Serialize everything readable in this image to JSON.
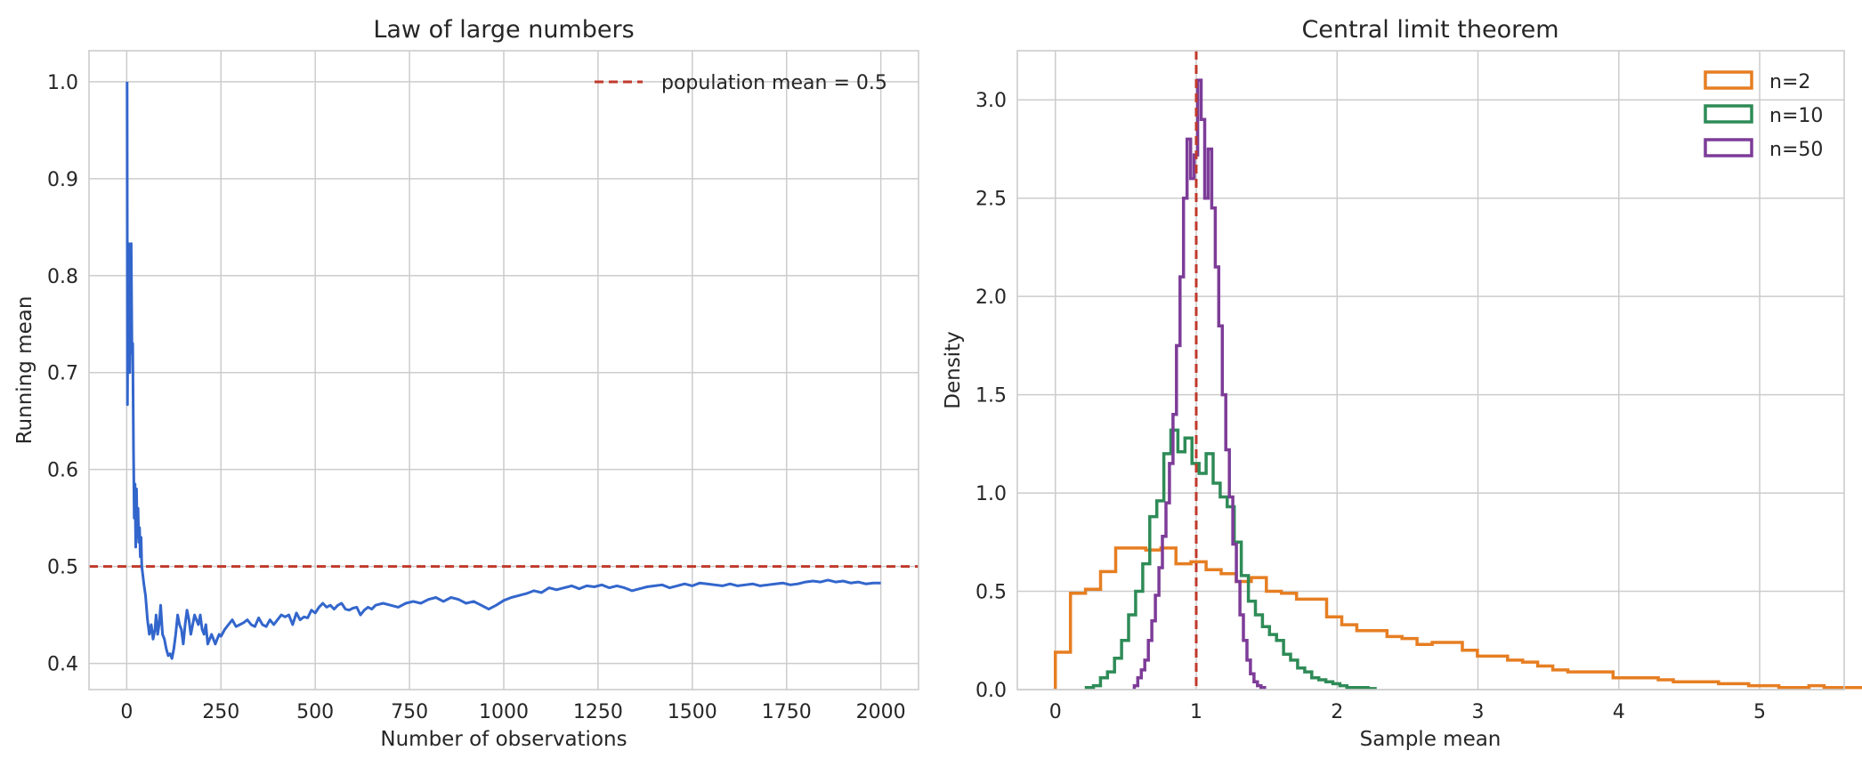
{
  "chart_data": [
    {
      "type": "line",
      "title": "Law of large numbers",
      "xlabel": "Number of observations",
      "ylabel": "Running mean",
      "xlim": [
        -100,
        2100
      ],
      "ylim": [
        0.373,
        1.032
      ],
      "xticks": [
        0,
        250,
        500,
        750,
        1000,
        1250,
        1500,
        1750,
        2000
      ],
      "yticks": [
        0.4,
        0.5,
        0.6,
        0.7,
        0.8,
        0.9,
        1.0
      ],
      "grid": true,
      "legend_position": "top-right",
      "series": [
        {
          "name": "",
          "color": "#3366cc",
          "x": [
            1,
            2,
            3,
            4,
            5,
            6,
            8,
            10,
            12,
            14,
            16,
            18,
            20,
            22,
            24,
            26,
            28,
            30,
            32,
            34,
            36,
            38,
            40,
            43,
            46,
            50,
            55,
            60,
            65,
            70,
            75,
            78,
            82,
            86,
            90,
            95,
            100,
            105,
            110,
            115,
            120,
            125,
            130,
            135,
            140,
            145,
            150,
            155,
            160,
            165,
            170,
            175,
            180,
            185,
            190,
            195,
            200,
            205,
            210,
            215,
            220,
            225,
            230,
            235,
            240,
            245,
            250,
            260,
            270,
            280,
            290,
            300,
            310,
            320,
            330,
            340,
            350,
            360,
            370,
            380,
            390,
            400,
            410,
            420,
            430,
            440,
            450,
            460,
            470,
            480,
            490,
            500,
            510,
            520,
            530,
            540,
            550,
            560,
            570,
            580,
            590,
            600,
            610,
            620,
            630,
            640,
            650,
            660,
            680,
            700,
            720,
            740,
            760,
            780,
            800,
            820,
            840,
            860,
            880,
            900,
            920,
            940,
            960,
            980,
            1000,
            1020,
            1040,
            1060,
            1080,
            1100,
            1120,
            1140,
            1160,
            1180,
            1200,
            1220,
            1240,
            1260,
            1280,
            1300,
            1320,
            1340,
            1360,
            1380,
            1400,
            1420,
            1440,
            1460,
            1480,
            1500,
            1520,
            1540,
            1560,
            1580,
            1600,
            1620,
            1640,
            1660,
            1680,
            1700,
            1720,
            1740,
            1760,
            1780,
            1800,
            1820,
            1840,
            1860,
            1880,
            1900,
            1920,
            1940,
            1960,
            1980,
            2000
          ],
          "y": [
            1.0,
            0.667,
            0.75,
            0.8,
            0.833,
            0.714,
            0.7,
            0.77,
            0.833,
            0.72,
            0.73,
            0.62,
            0.55,
            0.585,
            0.52,
            0.58,
            0.53,
            0.56,
            0.525,
            0.54,
            0.51,
            0.53,
            0.5,
            0.49,
            0.48,
            0.47,
            0.445,
            0.43,
            0.44,
            0.425,
            0.435,
            0.45,
            0.43,
            0.44,
            0.46,
            0.43,
            0.425,
            0.415,
            0.408,
            0.41,
            0.405,
            0.415,
            0.43,
            0.45,
            0.44,
            0.435,
            0.42,
            0.44,
            0.455,
            0.445,
            0.43,
            0.44,
            0.45,
            0.445,
            0.44,
            0.45,
            0.435,
            0.43,
            0.44,
            0.42,
            0.425,
            0.43,
            0.425,
            0.42,
            0.425,
            0.43,
            0.428,
            0.435,
            0.44,
            0.445,
            0.438,
            0.44,
            0.442,
            0.445,
            0.44,
            0.438,
            0.447,
            0.44,
            0.438,
            0.445,
            0.44,
            0.445,
            0.45,
            0.448,
            0.45,
            0.44,
            0.452,
            0.445,
            0.448,
            0.447,
            0.455,
            0.452,
            0.458,
            0.462,
            0.458,
            0.46,
            0.456,
            0.46,
            0.462,
            0.456,
            0.455,
            0.457,
            0.458,
            0.45,
            0.455,
            0.458,
            0.456,
            0.46,
            0.462,
            0.46,
            0.458,
            0.462,
            0.464,
            0.462,
            0.466,
            0.468,
            0.464,
            0.468,
            0.466,
            0.462,
            0.464,
            0.46,
            0.456,
            0.46,
            0.465,
            0.468,
            0.47,
            0.472,
            0.475,
            0.473,
            0.478,
            0.476,
            0.478,
            0.48,
            0.477,
            0.48,
            0.479,
            0.481,
            0.478,
            0.48,
            0.478,
            0.475,
            0.477,
            0.479,
            0.48,
            0.481,
            0.478,
            0.48,
            0.482,
            0.48,
            0.483,
            0.482,
            0.481,
            0.48,
            0.482,
            0.48,
            0.481,
            0.482,
            0.48,
            0.481,
            0.482,
            0.483,
            0.481,
            0.482,
            0.484,
            0.485,
            0.484,
            0.486,
            0.484,
            0.485,
            0.483,
            0.484,
            0.482,
            0.483,
            0.483
          ]
        }
      ],
      "reference_line": {
        "label": "population mean = 0.5",
        "y": 0.5,
        "color": "#c0392b"
      }
    },
    {
      "type": "area",
      "title": "Central limit theorem",
      "xlabel": "Sample mean",
      "ylabel": "Density",
      "xlim": [
        -0.27,
        5.6
      ],
      "ylim": [
        0,
        3.25
      ],
      "xticks": [
        0,
        1,
        2,
        3,
        4,
        5
      ],
      "yticks": [
        0.0,
        0.5,
        1.0,
        1.5,
        2.0,
        2.5,
        3.0
      ],
      "grid": true,
      "legend_position": "top-right",
      "reference_line": {
        "x": 1.0,
        "color": "#c0392b"
      },
      "series": [
        {
          "name": "n=2",
          "color": "#e67e22",
          "bin_start": 0.0,
          "bin_width": 0.107,
          "values": [
            0.19,
            0.49,
            0.51,
            0.6,
            0.72,
            0.72,
            0.71,
            0.72,
            0.64,
            0.65,
            0.61,
            0.59,
            0.55,
            0.57,
            0.5,
            0.49,
            0.46,
            0.46,
            0.37,
            0.33,
            0.3,
            0.3,
            0.27,
            0.26,
            0.23,
            0.24,
            0.24,
            0.2,
            0.17,
            0.17,
            0.15,
            0.14,
            0.12,
            0.1,
            0.09,
            0.09,
            0.09,
            0.06,
            0.06,
            0.06,
            0.05,
            0.04,
            0.04,
            0.04,
            0.03,
            0.03,
            0.02,
            0.02,
            0.01,
            0.01,
            0.02,
            0.01,
            0.01,
            0.01,
            0.01,
            0.01,
            0.01,
            0.01,
            0.01,
            0.01
          ]
        },
        {
          "name": "n=10",
          "color": "#2e8b57",
          "bin_start": 0.22,
          "bin_width": 0.05,
          "values": [
            0.01,
            0.02,
            0.06,
            0.09,
            0.16,
            0.25,
            0.38,
            0.5,
            0.64,
            0.88,
            0.96,
            1.2,
            1.32,
            1.21,
            1.28,
            1.15,
            1.1,
            1.2,
            1.05,
            0.98,
            0.93,
            0.75,
            0.58,
            0.45,
            0.38,
            0.32,
            0.28,
            0.25,
            0.18,
            0.15,
            0.11,
            0.09,
            0.06,
            0.05,
            0.04,
            0.03,
            0.02,
            0.01,
            0.01,
            0.01,
            0.005
          ]
        },
        {
          "name": "n=50",
          "color": "#7d3c98",
          "bin_start": 0.56,
          "bin_width": 0.025,
          "values": [
            0.02,
            0.06,
            0.1,
            0.15,
            0.25,
            0.35,
            0.48,
            0.62,
            0.78,
            0.95,
            1.15,
            1.4,
            1.75,
            2.1,
            2.5,
            2.8,
            2.6,
            2.72,
            3.1,
            2.9,
            2.5,
            2.75,
            2.45,
            2.15,
            1.85,
            1.5,
            1.22,
            0.98,
            0.74,
            0.55,
            0.38,
            0.25,
            0.15,
            0.08,
            0.04,
            0.02,
            0.01
          ]
        }
      ]
    }
  ]
}
